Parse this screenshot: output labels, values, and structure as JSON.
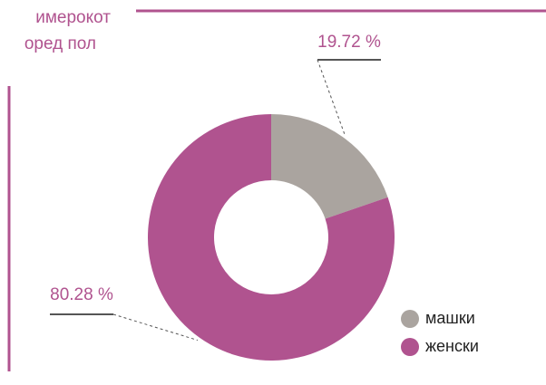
{
  "header": {
    "lines": [
      "имерокот",
      "оред пол"
    ]
  },
  "chart_data": {
    "type": "pie",
    "donut": true,
    "categories": [
      "машки",
      "женски"
    ],
    "values": [
      19.72,
      80.28
    ],
    "value_labels": [
      "19.72 %",
      "80.28 %"
    ],
    "colors": [
      "#aaa49f",
      "#b0538f"
    ]
  }
}
